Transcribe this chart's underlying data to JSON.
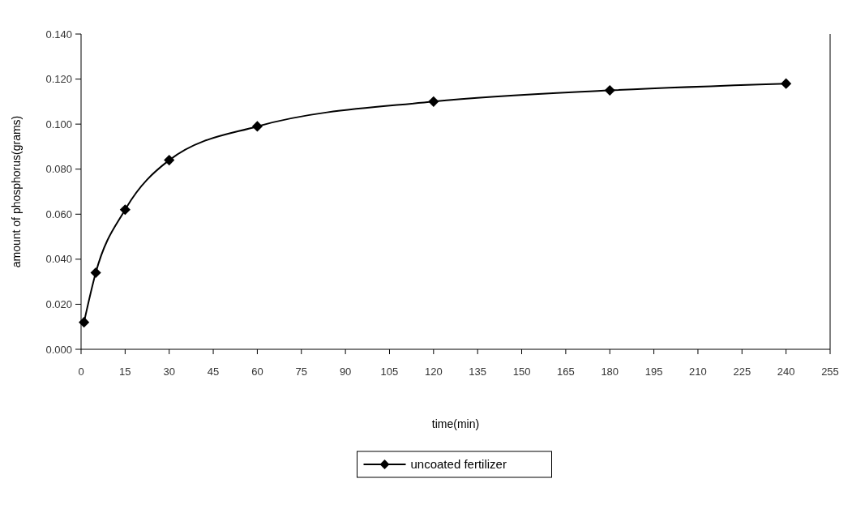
{
  "chart_data": {
    "type": "line",
    "xlabel": "time(min)",
    "ylabel": "amount of phosphorus(grams)",
    "x": [
      1,
      5,
      15,
      30,
      60,
      120,
      180,
      240
    ],
    "series": [
      {
        "name": "uncoated fertilizer",
        "color": "#000000",
        "values": [
          0.012,
          0.034,
          0.062,
          0.084,
          0.099,
          0.11,
          0.115,
          0.118
        ]
      }
    ],
    "xlim": [
      0,
      255
    ],
    "xticks": [
      0,
      15,
      30,
      45,
      60,
      75,
      90,
      105,
      120,
      135,
      150,
      165,
      180,
      195,
      210,
      225,
      240,
      255
    ],
    "ylim": [
      0,
      0.14
    ],
    "yticks": [
      {
        "value": 0,
        "label": "0.000"
      },
      {
        "value": 0.02,
        "label": "0.020"
      },
      {
        "value": 0.04,
        "label": "0.040"
      },
      {
        "value": 0.06,
        "label": "0.060"
      },
      {
        "value": 0.08,
        "label": "0.080"
      },
      {
        "value": 0.1,
        "label": "0.100"
      },
      {
        "value": 0.12,
        "label": "0.120"
      },
      {
        "value": 0.14,
        "label": "0.140"
      }
    ],
    "marker": "diamond",
    "line_style": "solid",
    "legend": "bottom",
    "grid": false
  }
}
